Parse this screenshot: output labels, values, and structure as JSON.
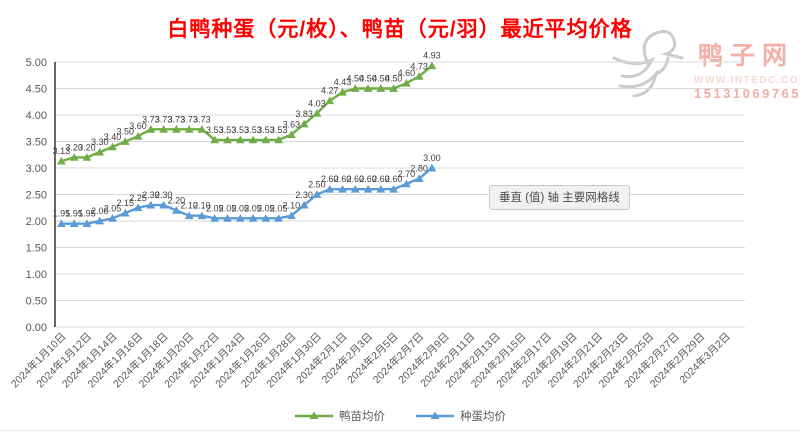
{
  "title": "白鸭种蛋（元/枚）、鸭苗（元/羽）最近平均价格",
  "title_color": "#fe0000",
  "watermark": {
    "brand": "鸭子网",
    "site": "WWW.INTEDC.COM",
    "phone": "15131069765"
  },
  "tooltip": "垂直 (值) 轴 主要网格线",
  "legend": [
    {
      "label": "鸭苗均价",
      "color": "#70ad47"
    },
    {
      "label": "种蛋均价",
      "color": "#5b9bd5"
    }
  ],
  "chart_data": {
    "type": "line",
    "title": "白鸭种蛋（元/枚）、鸭苗（元/羽）最近平均价格",
    "xlabel": "",
    "ylabel": "",
    "ylim": [
      0,
      5
    ],
    "ytick_step": 0.5,
    "grid": true,
    "legend_position": "bottom",
    "marker": "triangle",
    "data_labels": true,
    "label_decimals": 2,
    "total_categories": 54,
    "x_tick_every": 2,
    "x_tick_labels": [
      "2024年1月10日",
      "2024年1月12日",
      "2024年1月14日",
      "2024年1月16日",
      "2024年1月18日",
      "2024年1月20日",
      "2024年1月22日",
      "2024年1月24日",
      "2024年1月26日",
      "2024年1月28日",
      "2024年1月30日",
      "2024年2月1日",
      "2024年2月3日",
      "2024年2月5日",
      "2024年2月7日",
      "2024年2月9日",
      "2024年2月11日",
      "2024年2月13日",
      "2024年2月15日",
      "2024年2月17日",
      "2024年2月19日",
      "2024年2月21日",
      "2024年2月23日",
      "2024年2月25日",
      "2024年2月27日",
      "2024年2月29日",
      "2024年3月2日"
    ],
    "series": [
      {
        "name": "鸭苗均价",
        "color": "#70ad47",
        "values": [
          3.13,
          3.2,
          3.2,
          3.3,
          3.4,
          3.5,
          3.6,
          3.73,
          3.73,
          3.73,
          3.73,
          3.73,
          3.53,
          3.53,
          3.53,
          3.53,
          3.53,
          3.53,
          3.63,
          3.83,
          4.03,
          4.27,
          4.43,
          4.5,
          4.5,
          4.5,
          4.5,
          4.6,
          4.73,
          4.93
        ]
      },
      {
        "name": "种蛋均价",
        "color": "#5b9bd5",
        "values": [
          1.95,
          1.95,
          1.95,
          2.0,
          2.05,
          2.15,
          2.25,
          2.3,
          2.3,
          2.2,
          2.1,
          2.1,
          2.05,
          2.05,
          2.05,
          2.05,
          2.05,
          2.05,
          2.1,
          2.3,
          2.5,
          2.6,
          2.6,
          2.6,
          2.6,
          2.6,
          2.6,
          2.7,
          2.8,
          3.0
        ]
      }
    ]
  }
}
